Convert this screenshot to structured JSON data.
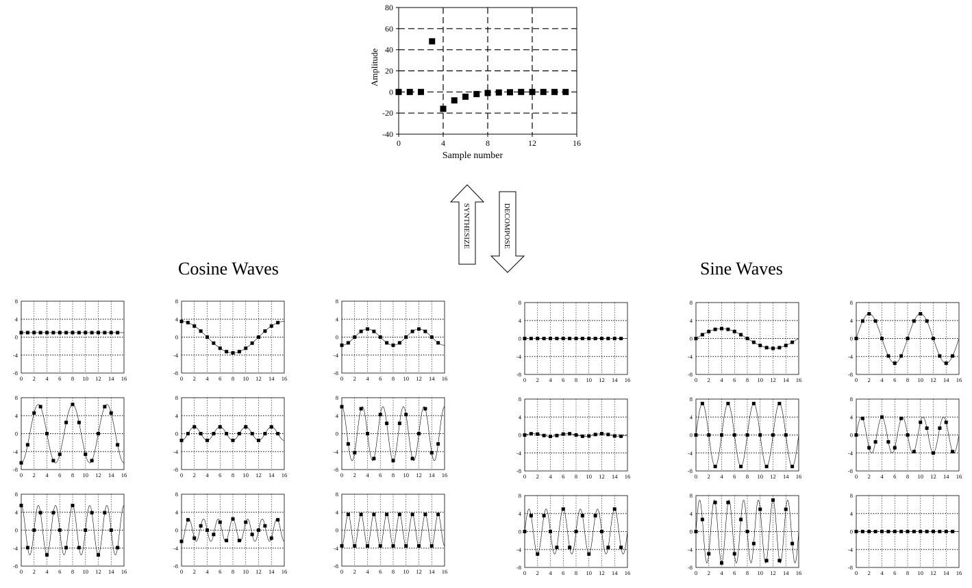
{
  "chart_data": [
    {
      "type": "scatter",
      "xlabel": "Sample number",
      "ylabel": "Amplitude",
      "xlim": [
        0,
        16
      ],
      "ylim": [
        -40,
        80
      ],
      "xticks": [
        "0",
        "4",
        "8",
        "12",
        "16"
      ],
      "yticks": [
        "80",
        "60",
        "40",
        "20",
        "0",
        "-20",
        "-40"
      ],
      "x": [
        0,
        1,
        2,
        3,
        4,
        5,
        6,
        7,
        8,
        9,
        10,
        11,
        12,
        13,
        14,
        15
      ],
      "values": [
        0,
        0,
        0,
        48,
        -16,
        -8,
        -4.5,
        -2,
        -1,
        -0.5,
        -0.3,
        0,
        0,
        0,
        0,
        0
      ]
    }
  ],
  "arrows": {
    "synthesize": "SYNTHESIZE",
    "decompose": "DECOMPOSE"
  },
  "groups": {
    "cosine_title": "Cosine Waves",
    "sine_title": "Sine Waves"
  },
  "small_axes": {
    "xticks": [
      "0",
      "2",
      "4",
      "6",
      "8",
      "10",
      "12",
      "14",
      "16"
    ],
    "yticks": [
      "8",
      "4",
      "0",
      "-4",
      "-8"
    ],
    "xlim": [
      0,
      16
    ],
    "ylim": [
      -8,
      8
    ]
  },
  "waves": {
    "cosine": [
      {
        "k": 0,
        "amp": 1
      },
      {
        "k": 1,
        "amp": 3.5
      },
      {
        "k": 2,
        "amp": -1.8
      },
      {
        "k": 3,
        "amp": -6.5
      },
      {
        "k": 4,
        "amp": -1.5
      },
      {
        "k": 5,
        "amp": 6
      },
      {
        "k": 6,
        "amp": 5.5
      },
      {
        "k": 7,
        "amp": -2.5
      },
      {
        "k": 8,
        "amp": -3.5
      }
    ],
    "sine": [
      {
        "k": 0,
        "amp": 0
      },
      {
        "k": 1,
        "amp": 2.2
      },
      {
        "k": 2,
        "amp": 5.5
      },
      {
        "k": 3,
        "amp": 0.3
      },
      {
        "k": 4,
        "amp": 7
      },
      {
        "k": 5,
        "amp": 4
      },
      {
        "k": 6,
        "amp": 5
      },
      {
        "k": 7,
        "amp": 7
      },
      {
        "k": 8,
        "amp": 0
      }
    ]
  }
}
